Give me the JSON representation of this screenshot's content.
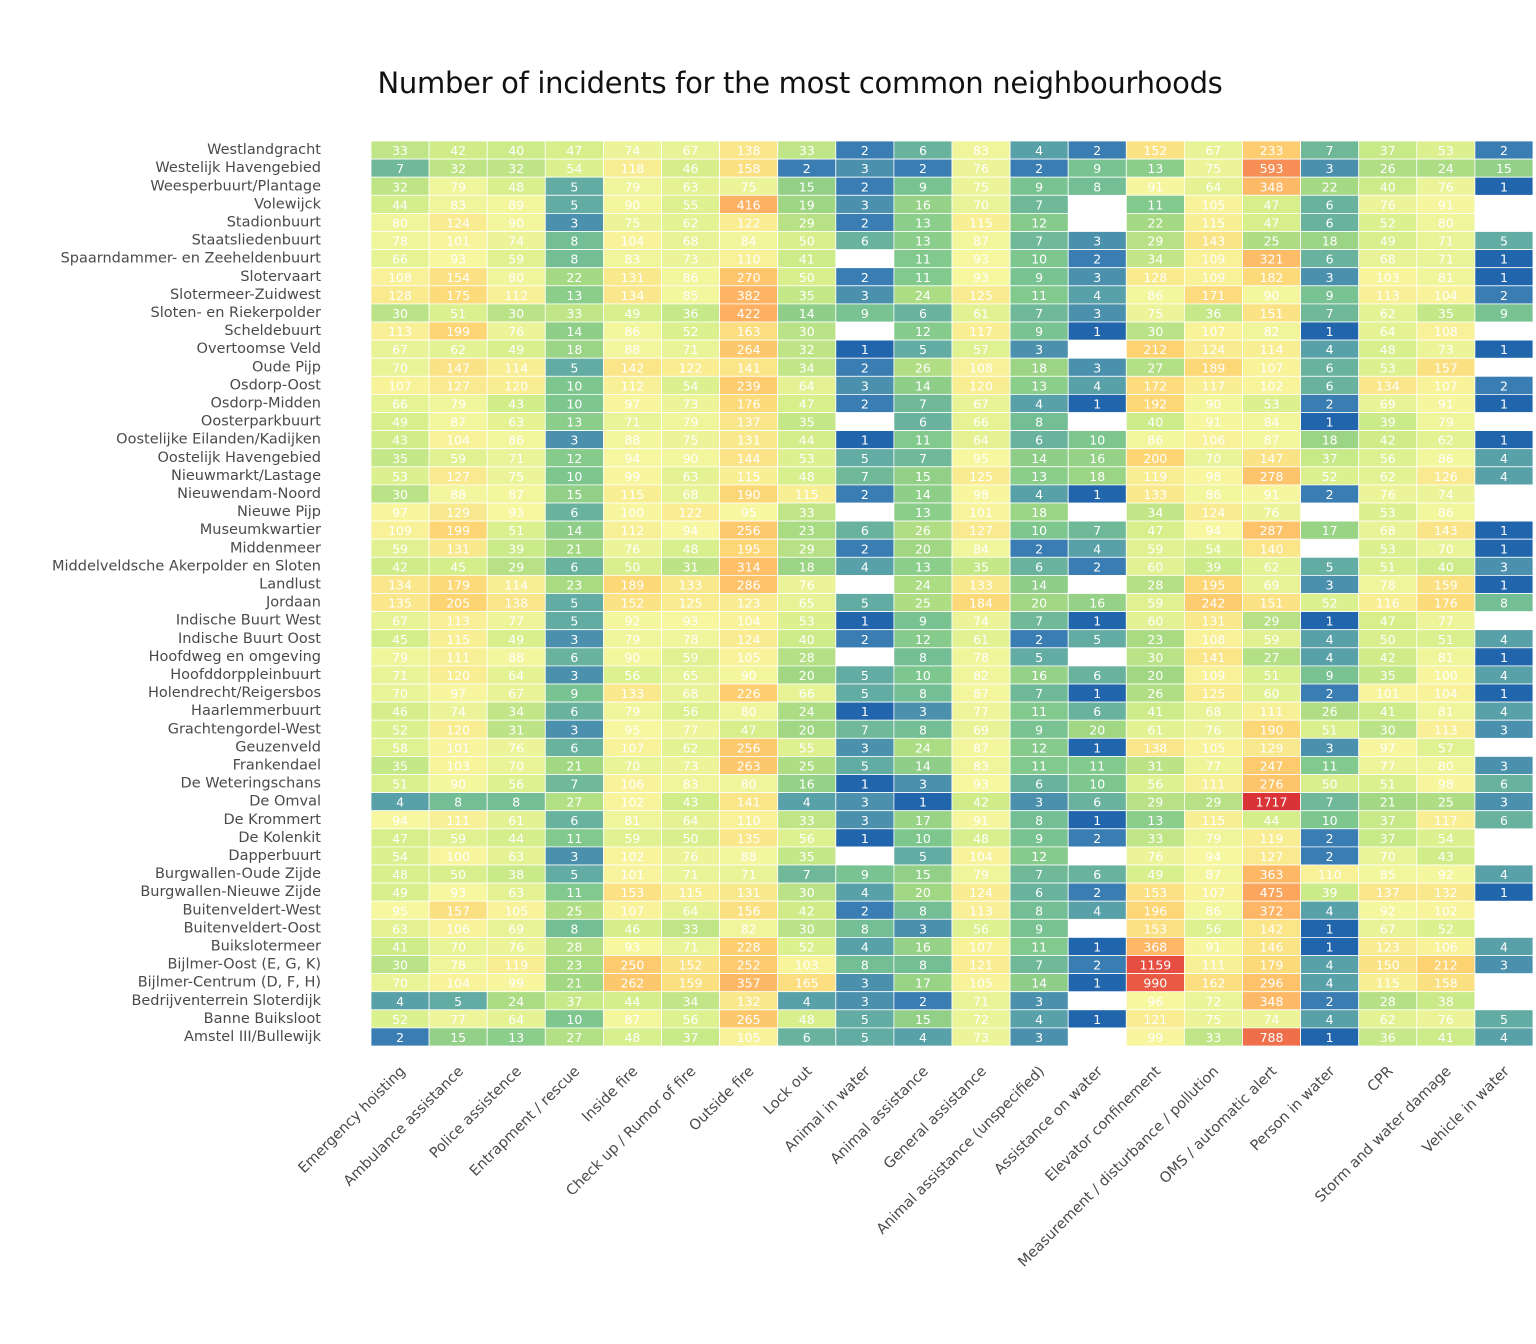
{
  "chart_data": {
    "type": "heatmap",
    "title": "Number of incidents for the most common neighbourhoods",
    "columns": [
      "Emergency hoisting",
      "Ambulance assistance",
      "Police assistence",
      "Entrapment / rescue",
      "Inside fire",
      "Check up / Rumor of fire",
      "Outside fire",
      "Lock out",
      "Animal in water",
      "Animal assistance",
      "General assistance",
      "Animal assistance (unspecified)",
      "Assistance on water",
      "Elevator confinement",
      "Measurement / disturbance / pollution",
      "OMS / automatic alert",
      "Person in water",
      "CPR",
      "Storm and water damage",
      "Vehicle in water"
    ],
    "rows": [
      "Westlandgracht",
      "Westelijk Havengebied",
      "Weesperbuurt/Plantage",
      "Volewijck",
      "Stadionbuurt",
      "Staatsliedenbuurt",
      "Spaarndammer- en Zeeheldenbuurt",
      "Slotervaart",
      "Slotermeer-Zuidwest",
      "Sloten- en Riekerpolder",
      "Scheldebuurt",
      "Overtoomse Veld",
      "Oude Pijp",
      "Osdorp-Oost",
      "Osdorp-Midden",
      "Oosterparkbuurt",
      "Oostelijke Eilanden/Kadijken",
      "Oostelijk Havengebied",
      "Nieuwmarkt/Lastage",
      "Nieuwendam-Noord",
      "Nieuwe Pijp",
      "Museumkwartier",
      "Middenmeer",
      "Middelveldsche Akerpolder en Sloten",
      "Landlust",
      "Jordaan",
      "Indische Buurt West",
      "Indische Buurt Oost",
      "Hoofdweg en omgeving",
      "Hoofddorppleinbuurt",
      "Holendrecht/Reigersbos",
      "Haarlemmerbuurt",
      "Grachtengordel-West",
      "Geuzenveld",
      "Frankendael",
      "De Weteringschans",
      "De Omval",
      "De Krommert",
      "De Kolenkit",
      "Dapperbuurt",
      "Burgwallen-Oude Zijde",
      "Burgwallen-Nieuwe Zijde",
      "Buitenveldert-West",
      "Buitenveldert-Oost",
      "Buikslotermeer",
      "Bijlmer-Oost (E, G, K)",
      "Bijlmer-Centrum (D, F, H)",
      "Bedrijventerrein Sloterdijk",
      "Banne Buiksloot",
      "Amstel III/Bullewijk"
    ],
    "values": [
      [
        33,
        42,
        40,
        47,
        74,
        67,
        138,
        33,
        2,
        6,
        83,
        4,
        2,
        152,
        67,
        233,
        7,
        37,
        53,
        2
      ],
      [
        7,
        32,
        32,
        54,
        118,
        46,
        158,
        2,
        3,
        2,
        76,
        2,
        9,
        13,
        75,
        593,
        3,
        26,
        24,
        15
      ],
      [
        32,
        79,
        48,
        5,
        79,
        63,
        75,
        15,
        2,
        9,
        75,
        9,
        8,
        91,
        64,
        348,
        22,
        40,
        76,
        1
      ],
      [
        44,
        83,
        89,
        5,
        90,
        55,
        416,
        19,
        3,
        16,
        70,
        7,
        null,
        11,
        105,
        47,
        6,
        76,
        91,
        null
      ],
      [
        80,
        124,
        90,
        3,
        75,
        62,
        122,
        29,
        2,
        13,
        115,
        12,
        null,
        22,
        115,
        47,
        6,
        52,
        80,
        null
      ],
      [
        78,
        101,
        74,
        8,
        104,
        68,
        84,
        50,
        6,
        13,
        87,
        7,
        3,
        29,
        143,
        25,
        18,
        49,
        71,
        5
      ],
      [
        66,
        93,
        59,
        8,
        83,
        73,
        110,
        41,
        null,
        11,
        93,
        10,
        2,
        34,
        109,
        321,
        6,
        68,
        71,
        1
      ],
      [
        108,
        154,
        80,
        22,
        131,
        86,
        270,
        50,
        2,
        11,
        93,
        9,
        3,
        128,
        109,
        182,
        3,
        103,
        81,
        1
      ],
      [
        128,
        175,
        112,
        13,
        134,
        85,
        382,
        35,
        3,
        24,
        125,
        11,
        4,
        86,
        171,
        90,
        9,
        113,
        104,
        2
      ],
      [
        30,
        51,
        30,
        33,
        49,
        36,
        422,
        14,
        9,
        6,
        61,
        7,
        3,
        75,
        36,
        151,
        7,
        62,
        35,
        9
      ],
      [
        113,
        199,
        76,
        14,
        86,
        52,
        163,
        30,
        null,
        12,
        117,
        9,
        1,
        30,
        107,
        82,
        1,
        64,
        108,
        null
      ],
      [
        67,
        62,
        49,
        18,
        88,
        71,
        264,
        32,
        1,
        5,
        57,
        3,
        null,
        212,
        124,
        114,
        4,
        48,
        73,
        1
      ],
      [
        70,
        147,
        114,
        5,
        142,
        122,
        141,
        34,
        2,
        26,
        108,
        18,
        3,
        27,
        189,
        107,
        6,
        53,
        157,
        null
      ],
      [
        107,
        127,
        120,
        10,
        112,
        54,
        239,
        64,
        3,
        14,
        120,
        13,
        4,
        172,
        117,
        102,
        6,
        134,
        107,
        2
      ],
      [
        66,
        79,
        43,
        10,
        97,
        73,
        176,
        47,
        2,
        7,
        67,
        4,
        1,
        192,
        90,
        53,
        2,
        69,
        91,
        1
      ],
      [
        49,
        87,
        63,
        13,
        71,
        79,
        137,
        35,
        null,
        6,
        66,
        8,
        null,
        40,
        91,
        84,
        1,
        39,
        79,
        null
      ],
      [
        43,
        104,
        86,
        3,
        88,
        75,
        131,
        44,
        1,
        11,
        64,
        6,
        10,
        86,
        106,
        87,
        18,
        42,
        62,
        1
      ],
      [
        35,
        59,
        71,
        12,
        94,
        90,
        144,
        53,
        5,
        7,
        95,
        14,
        16,
        200,
        70,
        147,
        37,
        56,
        86,
        4
      ],
      [
        53,
        127,
        75,
        10,
        99,
        63,
        115,
        48,
        7,
        15,
        125,
        13,
        18,
        119,
        98,
        278,
        52,
        62,
        126,
        4
      ],
      [
        30,
        88,
        87,
        15,
        115,
        68,
        190,
        115,
        2,
        14,
        98,
        4,
        1,
        133,
        86,
        91,
        2,
        76,
        74,
        null
      ],
      [
        97,
        129,
        93,
        6,
        100,
        122,
        95,
        33,
        null,
        13,
        101,
        18,
        null,
        34,
        124,
        76,
        null,
        53,
        86,
        null
      ],
      [
        109,
        199,
        51,
        14,
        112,
        94,
        256,
        23,
        6,
        26,
        127,
        10,
        7,
        47,
        94,
        287,
        17,
        68,
        143,
        1
      ],
      [
        59,
        131,
        39,
        21,
        76,
        48,
        195,
        29,
        2,
        20,
        84,
        2,
        4,
        59,
        54,
        140,
        null,
        53,
        70,
        1
      ],
      [
        42,
        45,
        29,
        6,
        50,
        31,
        314,
        18,
        4,
        13,
        35,
        6,
        2,
        60,
        39,
        62,
        5,
        51,
        40,
        3
      ],
      [
        134,
        179,
        114,
        23,
        189,
        133,
        286,
        76,
        null,
        24,
        133,
        14,
        null,
        28,
        195,
        69,
        3,
        78,
        159,
        1
      ],
      [
        135,
        205,
        138,
        5,
        152,
        125,
        123,
        65,
        5,
        25,
        184,
        20,
        16,
        59,
        242,
        151,
        52,
        116,
        176,
        8
      ],
      [
        67,
        113,
        77,
        5,
        92,
        93,
        104,
        53,
        1,
        9,
        74,
        7,
        1,
        60,
        131,
        29,
        1,
        47,
        77,
        null
      ],
      [
        45,
        115,
        49,
        3,
        79,
        78,
        124,
        40,
        2,
        12,
        61,
        2,
        5,
        23,
        108,
        59,
        4,
        50,
        51,
        4
      ],
      [
        79,
        111,
        88,
        6,
        90,
        59,
        105,
        28,
        null,
        8,
        78,
        5,
        null,
        30,
        141,
        27,
        4,
        42,
        81,
        1
      ],
      [
        71,
        120,
        64,
        3,
        56,
        65,
        90,
        20,
        5,
        10,
        82,
        16,
        6,
        20,
        109,
        51,
        9,
        35,
        100,
        4
      ],
      [
        70,
        97,
        67,
        9,
        133,
        68,
        226,
        66,
        5,
        8,
        87,
        7,
        1,
        26,
        125,
        60,
        2,
        101,
        104,
        1
      ],
      [
        46,
        74,
        34,
        6,
        79,
        56,
        80,
        24,
        1,
        3,
        77,
        11,
        6,
        41,
        68,
        111,
        26,
        41,
        81,
        4
      ],
      [
        52,
        120,
        31,
        3,
        95,
        77,
        47,
        20,
        7,
        8,
        69,
        9,
        20,
        61,
        76,
        190,
        51,
        30,
        113,
        3
      ],
      [
        58,
        101,
        76,
        6,
        107,
        62,
        256,
        55,
        3,
        24,
        87,
        12,
        1,
        138,
        105,
        129,
        3,
        97,
        57,
        null
      ],
      [
        35,
        103,
        70,
        21,
        70,
        73,
        263,
        25,
        5,
        14,
        83,
        11,
        11,
        31,
        77,
        247,
        11,
        77,
        80,
        3
      ],
      [
        51,
        90,
        56,
        7,
        106,
        83,
        80,
        16,
        1,
        3,
        93,
        6,
        10,
        56,
        111,
        276,
        50,
        51,
        98,
        6
      ],
      [
        4,
        8,
        8,
        27,
        102,
        43,
        141,
        4,
        3,
        1,
        42,
        3,
        6,
        29,
        29,
        1717,
        7,
        21,
        25,
        3
      ],
      [
        94,
        111,
        61,
        6,
        81,
        64,
        110,
        33,
        3,
        17,
        91,
        8,
        1,
        13,
        115,
        44,
        10,
        37,
        117,
        6
      ],
      [
        47,
        59,
        44,
        11,
        59,
        50,
        135,
        56,
        1,
        10,
        48,
        9,
        2,
        33,
        79,
        119,
        2,
        37,
        54,
        null
      ],
      [
        54,
        100,
        63,
        3,
        102,
        76,
        88,
        35,
        null,
        5,
        104,
        12,
        null,
        76,
        94,
        127,
        2,
        70,
        43,
        null
      ],
      [
        48,
        50,
        38,
        5,
        101,
        71,
        71,
        7,
        9,
        15,
        79,
        7,
        6,
        49,
        87,
        363,
        110,
        85,
        92,
        4
      ],
      [
        49,
        93,
        63,
        11,
        153,
        115,
        131,
        30,
        4,
        20,
        124,
        6,
        2,
        153,
        107,
        475,
        39,
        137,
        132,
        1
      ],
      [
        95,
        157,
        105,
        25,
        107,
        64,
        156,
        42,
        2,
        8,
        113,
        8,
        4,
        196,
        86,
        372,
        4,
        92,
        102,
        null
      ],
      [
        63,
        106,
        69,
        8,
        46,
        33,
        82,
        30,
        8,
        3,
        56,
        9,
        null,
        153,
        56,
        142,
        1,
        67,
        52,
        null
      ],
      [
        41,
        70,
        76,
        28,
        93,
        71,
        228,
        52,
        4,
        16,
        107,
        11,
        1,
        368,
        91,
        146,
        1,
        123,
        106,
        4
      ],
      [
        30,
        78,
        119,
        23,
        250,
        152,
        252,
        103,
        8,
        8,
        121,
        7,
        2,
        1159,
        111,
        179,
        4,
        150,
        212,
        3
      ],
      [
        70,
        104,
        99,
        21,
        262,
        159,
        357,
        165,
        3,
        17,
        105,
        14,
        1,
        990,
        162,
        296,
        4,
        115,
        158,
        null
      ],
      [
        4,
        5,
        24,
        37,
        44,
        34,
        132,
        4,
        3,
        2,
        71,
        3,
        null,
        96,
        72,
        348,
        2,
        28,
        38,
        null
      ],
      [
        52,
        77,
        64,
        10,
        87,
        56,
        265,
        48,
        5,
        15,
        72,
        4,
        1,
        121,
        75,
        74,
        4,
        62,
        76,
        5
      ],
      [
        2,
        15,
        13,
        27,
        48,
        37,
        105,
        6,
        5,
        4,
        73,
        3,
        null,
        99,
        33,
        788,
        1,
        36,
        41,
        4
      ]
    ],
    "color_scale": "log",
    "colormap": [
      "#2166ac",
      "#3b7fb3",
      "#5ea8a6",
      "#7cc68f",
      "#a3d882",
      "#d4ee8a",
      "#f7f7a0",
      "#fdd472",
      "#fdae61",
      "#ec5d45",
      "#d42935"
    ],
    "missing_color": "#ffffff",
    "cell_border": "#ffffff",
    "grid": false,
    "legend": "none"
  }
}
